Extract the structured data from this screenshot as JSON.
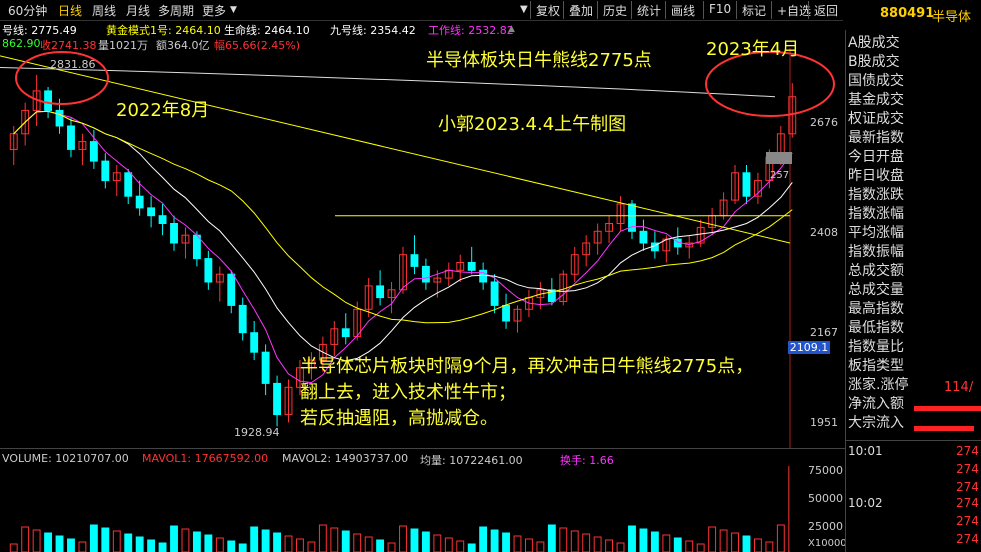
{
  "tabs": [
    "60分钟",
    "日线",
    "周线",
    "月线",
    "多周期",
    "更多"
  ],
  "active_tab": "日线",
  "toolbar": [
    "复权",
    "叠加",
    "历史",
    "统计",
    "画线",
    "F10",
    "标记",
    "+自选",
    "返回"
  ],
  "security": {
    "code": "880491",
    "name": "半导体"
  },
  "ma_line": {
    "close_label": "号线: 2775.49",
    "gold_label": "黄金模式1号: 2464.10",
    "life_label": "生命线: 2464.10",
    "nine_label": "九号线: 2354.42",
    "work_label": "工作线: 2532.82"
  },
  "ma_line2": {
    "a": "862.90",
    "b": "收2741.38",
    "c": "量1021万",
    "d": "额364.0亿",
    "e": "幅65.66(2.45%)"
  },
  "annotations": {
    "title": "半导体板块日牛熊线2775点",
    "author": "小郭2023.4.4上午制图",
    "left_date": "2022年8月",
    "right_date": "2023年4月",
    "body1": "半导体芯片板块时隔9个月，再次冲击日牛熊线2775点，",
    "body2": "翻上去，进入技术性牛市；",
    "body3": "若反抽遇阻，高抛减仓。",
    "high_label": "2831.86",
    "low_label": "1928.94",
    "right_label": "257",
    "current_label": "2109.1"
  },
  "y_axis": [
    "2676",
    "2408",
    "2167",
    "1951"
  ],
  "volume": {
    "volume_label": "VOLUME: 10210707.00",
    "mavol1_label": "MAVOL1: 17667592.00",
    "mavol2_label": "MAVOL2: 14903737.00",
    "avg_label": "均量: 10722461.00",
    "turnover_label": "换手: 1.66",
    "y_axis": [
      "75000",
      "50000",
      "25000",
      "X10000"
    ]
  },
  "sidebar": {
    "items": [
      "A股成交",
      "B股成交",
      "国债成交",
      "基金成交",
      "权证成交",
      "最新指数",
      "今日开盘",
      "昨日收盘",
      "指数涨跌",
      "指数涨幅",
      "平均涨幅",
      "指数振幅",
      "总成交额",
      "总成交量",
      "最高指数",
      "最低指数",
      "指数量比",
      "板指类型",
      "涨家.涨停",
      "净流入额",
      "大宗流入"
    ],
    "zhangjia_value": "114/",
    "times": [
      "10:01",
      "10:02"
    ],
    "tick_values": [
      "274",
      "274",
      "274",
      "274",
      "274",
      "274"
    ]
  },
  "colors": {
    "up": "#ff3333",
    "down": "#00ffff",
    "ma_yellow": "#ffff00",
    "ma_white": "#ffffff",
    "ma_purple": "#ff33ff",
    "annotation": "#ffff33"
  },
  "chart_data": {
    "type": "candlestick",
    "title": "半导体板块日牛熊线2775点",
    "y_range": [
      1900,
      2900
    ],
    "bull_bear_line": 2775,
    "ohlc": [
      [
        2640,
        2700,
        2600,
        2680
      ],
      [
        2680,
        2760,
        2650,
        2740
      ],
      [
        2740,
        2831,
        2700,
        2790
      ],
      [
        2790,
        2800,
        2720,
        2740
      ],
      [
        2740,
        2770,
        2680,
        2700
      ],
      [
        2700,
        2720,
        2620,
        2640
      ],
      [
        2640,
        2680,
        2600,
        2660
      ],
      [
        2660,
        2690,
        2590,
        2610
      ],
      [
        2610,
        2630,
        2540,
        2560
      ],
      [
        2560,
        2600,
        2520,
        2580
      ],
      [
        2580,
        2590,
        2500,
        2520
      ],
      [
        2520,
        2560,
        2470,
        2490
      ],
      [
        2490,
        2520,
        2440,
        2470
      ],
      [
        2470,
        2500,
        2420,
        2450
      ],
      [
        2450,
        2470,
        2380,
        2400
      ],
      [
        2400,
        2440,
        2360,
        2420
      ],
      [
        2420,
        2430,
        2340,
        2360
      ],
      [
        2360,
        2380,
        2280,
        2300
      ],
      [
        2300,
        2340,
        2250,
        2320
      ],
      [
        2320,
        2330,
        2220,
        2240
      ],
      [
        2240,
        2260,
        2150,
        2170
      ],
      [
        2170,
        2200,
        2100,
        2120
      ],
      [
        2120,
        2140,
        2010,
        2040
      ],
      [
        2040,
        2060,
        1930,
        1960
      ],
      [
        1960,
        2050,
        1940,
        2030
      ],
      [
        2030,
        2100,
        2010,
        2080
      ],
      [
        2080,
        2120,
        2050,
        2100
      ],
      [
        2100,
        2160,
        2070,
        2140
      ],
      [
        2140,
        2200,
        2110,
        2180
      ],
      [
        2180,
        2220,
        2140,
        2160
      ],
      [
        2160,
        2250,
        2150,
        2230
      ],
      [
        2230,
        2310,
        2210,
        2290
      ],
      [
        2290,
        2330,
        2240,
        2260
      ],
      [
        2260,
        2300,
        2220,
        2280
      ],
      [
        2280,
        2390,
        2270,
        2370
      ],
      [
        2370,
        2420,
        2320,
        2340
      ],
      [
        2340,
        2360,
        2280,
        2300
      ],
      [
        2300,
        2330,
        2260,
        2310
      ],
      [
        2310,
        2350,
        2290,
        2330
      ],
      [
        2330,
        2370,
        2300,
        2350
      ],
      [
        2350,
        2390,
        2320,
        2330
      ],
      [
        2330,
        2350,
        2280,
        2300
      ],
      [
        2300,
        2320,
        2220,
        2240
      ],
      [
        2240,
        2270,
        2180,
        2200
      ],
      [
        2200,
        2240,
        2170,
        2230
      ],
      [
        2230,
        2280,
        2210,
        2260
      ],
      [
        2260,
        2300,
        2230,
        2280
      ],
      [
        2280,
        2310,
        2240,
        2250
      ],
      [
        2250,
        2330,
        2240,
        2320
      ],
      [
        2320,
        2390,
        2300,
        2370
      ],
      [
        2370,
        2420,
        2340,
        2400
      ],
      [
        2400,
        2450,
        2370,
        2430
      ],
      [
        2430,
        2470,
        2400,
        2450
      ],
      [
        2450,
        2520,
        2430,
        2500
      ],
      [
        2500,
        2510,
        2410,
        2430
      ],
      [
        2430,
        2460,
        2380,
        2400
      ],
      [
        2400,
        2430,
        2360,
        2380
      ],
      [
        2380,
        2420,
        2350,
        2410
      ],
      [
        2410,
        2440,
        2370,
        2390
      ],
      [
        2390,
        2420,
        2360,
        2400
      ],
      [
        2400,
        2460,
        2390,
        2440
      ],
      [
        2440,
        2490,
        2420,
        2470
      ],
      [
        2470,
        2530,
        2460,
        2510
      ],
      [
        2510,
        2600,
        2500,
        2580
      ],
      [
        2580,
        2600,
        2500,
        2520
      ],
      [
        2520,
        2580,
        2500,
        2560
      ],
      [
        2560,
        2640,
        2540,
        2620
      ],
      [
        2620,
        2700,
        2600,
        2680
      ],
      [
        2680,
        2810,
        2670,
        2775
      ]
    ]
  }
}
